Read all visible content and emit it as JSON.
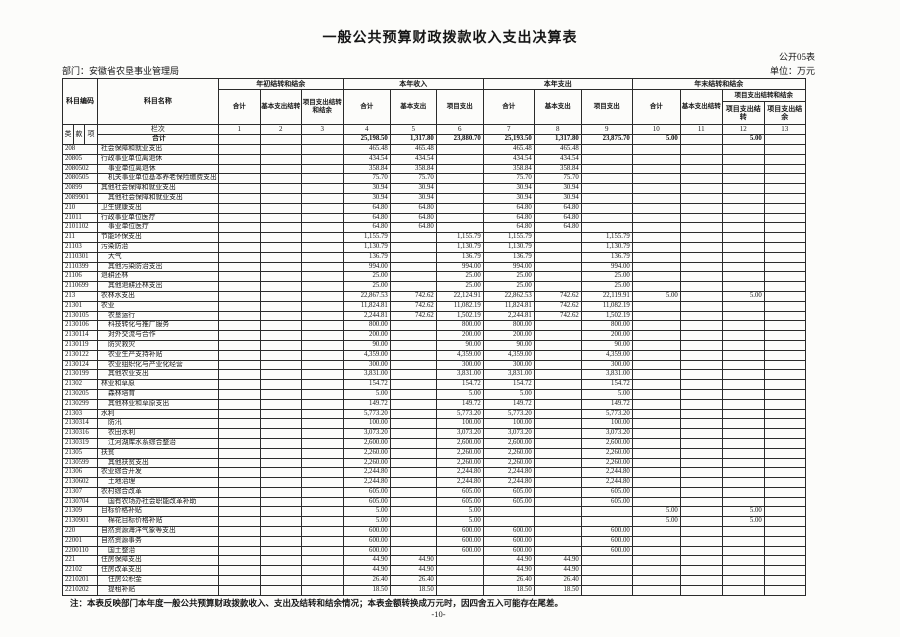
{
  "header": {
    "title": "一般公共预算财政拨款收入支出决算表",
    "table_code": "公开05表",
    "unit_label": "单位：万元",
    "department": "部门：安徽省农垦事业管理局"
  },
  "columns": {
    "subject_code": "科目编码",
    "subject_name": "科目名称",
    "group_begin": "年初结转和结余",
    "group_income": "本年收入",
    "group_expense": "本年支出",
    "group_end": "年末结转和结余",
    "end_sub_group": "项目支出结转和结余",
    "begin_cols": [
      "合计",
      "基本支出结转",
      "项目支出结转和结余"
    ],
    "income_cols": [
      "合计",
      "基本支出",
      "项目支出"
    ],
    "expense_cols": [
      "合计",
      "基本支出",
      "项目支出"
    ],
    "end_cols": [
      "合计",
      "基本支出结转",
      "项目支出结转",
      "项目支出结余"
    ],
    "class_label": "类",
    "section_label": "款",
    "item_label": "项",
    "lanci_label": "栏次",
    "col_numbers": [
      "1",
      "2",
      "3",
      "4",
      "5",
      "6",
      "7",
      "8",
      "9",
      "10",
      "11",
      "12",
      "13"
    ]
  },
  "total_row": {
    "label": "合计",
    "values": [
      "",
      "",
      "",
      "25,198.50",
      "1,317.80",
      "23,880.70",
      "25,193.50",
      "1,317.80",
      "23,875.70",
      "5.00",
      "",
      "5.00",
      ""
    ]
  },
  "rows": [
    [
      "208",
      "社会保障和就业支出",
      [
        "",
        "",
        "",
        "465.48",
        "465.48",
        "",
        "465.48",
        "465.48",
        "",
        "",
        "",
        "",
        ""
      ]
    ],
    [
      "20805",
      "行政事业单位离退休",
      [
        "",
        "",
        "",
        "434.54",
        "434.54",
        "",
        "434.54",
        "434.54",
        "",
        "",
        "",
        "",
        ""
      ]
    ],
    [
      "2080502",
      "事业单位离退休",
      [
        "",
        "",
        "",
        "358.84",
        "358.84",
        "",
        "358.84",
        "358.84",
        "",
        "",
        "",
        "",
        ""
      ]
    ],
    [
      "2080505",
      "机关事业单位基本养老保险缴费支出",
      [
        "",
        "",
        "",
        "75.70",
        "75.70",
        "",
        "75.70",
        "75.70",
        "",
        "",
        "",
        "",
        ""
      ]
    ],
    [
      "20899",
      "其他社会保障和就业支出",
      [
        "",
        "",
        "",
        "30.94",
        "30.94",
        "",
        "30.94",
        "30.94",
        "",
        "",
        "",
        "",
        ""
      ]
    ],
    [
      "2089901",
      "其他社会保障和就业支出",
      [
        "",
        "",
        "",
        "30.94",
        "30.94",
        "",
        "30.94",
        "30.94",
        "",
        "",
        "",
        "",
        ""
      ]
    ],
    [
      "210",
      "卫生健康支出",
      [
        "",
        "",
        "",
        "64.80",
        "64.80",
        "",
        "64.80",
        "64.80",
        "",
        "",
        "",
        "",
        ""
      ]
    ],
    [
      "21011",
      "行政事业单位医疗",
      [
        "",
        "",
        "",
        "64.80",
        "64.80",
        "",
        "64.80",
        "64.80",
        "",
        "",
        "",
        "",
        ""
      ]
    ],
    [
      "2101102",
      "事业单位医疗",
      [
        "",
        "",
        "",
        "64.80",
        "64.80",
        "",
        "64.80",
        "64.80",
        "",
        "",
        "",
        "",
        ""
      ]
    ],
    [
      "211",
      "节能环保支出",
      [
        "",
        "",
        "",
        "1,155.79",
        "",
        "1,155.79",
        "1,155.79",
        "",
        "1,155.79",
        "",
        "",
        "",
        ""
      ]
    ],
    [
      "21103",
      "污染防治",
      [
        "",
        "",
        "",
        "1,130.79",
        "",
        "1,130.79",
        "1,130.79",
        "",
        "1,130.79",
        "",
        "",
        "",
        ""
      ]
    ],
    [
      "2110301",
      "大气",
      [
        "",
        "",
        "",
        "136.79",
        "",
        "136.79",
        "136.79",
        "",
        "136.79",
        "",
        "",
        "",
        ""
      ]
    ],
    [
      "2110399",
      "其他污染防治支出",
      [
        "",
        "",
        "",
        "994.00",
        "",
        "994.00",
        "994.00",
        "",
        "994.00",
        "",
        "",
        "",
        ""
      ]
    ],
    [
      "21106",
      "退耕还林",
      [
        "",
        "",
        "",
        "25.00",
        "",
        "25.00",
        "25.00",
        "",
        "25.00",
        "",
        "",
        "",
        ""
      ]
    ],
    [
      "2110699",
      "其他退耕还林支出",
      [
        "",
        "",
        "",
        "25.00",
        "",
        "25.00",
        "25.00",
        "",
        "25.00",
        "",
        "",
        "",
        ""
      ]
    ],
    [
      "213",
      "农林水支出",
      [
        "",
        "",
        "",
        "22,867.53",
        "742.62",
        "22,124.91",
        "22,862.53",
        "742.62",
        "22,119.91",
        "5.00",
        "",
        "5.00",
        ""
      ]
    ],
    [
      "21301",
      "农业",
      [
        "",
        "",
        "",
        "11,824.81",
        "742.62",
        "11,082.19",
        "11,824.81",
        "742.62",
        "11,082.19",
        "",
        "",
        "",
        ""
      ]
    ],
    [
      "2130105",
      "农垦运行",
      [
        "",
        "",
        "",
        "2,244.81",
        "742.62",
        "1,502.19",
        "2,244.81",
        "742.62",
        "1,502.19",
        "",
        "",
        "",
        ""
      ]
    ],
    [
      "2130106",
      "科技转化与推广服务",
      [
        "",
        "",
        "",
        "800.00",
        "",
        "800.00",
        "800.00",
        "",
        "800.00",
        "",
        "",
        "",
        ""
      ]
    ],
    [
      "2130114",
      "对外交流与合作",
      [
        "",
        "",
        "",
        "200.00",
        "",
        "200.00",
        "200.00",
        "",
        "200.00",
        "",
        "",
        "",
        ""
      ]
    ],
    [
      "2130119",
      "防灾救灾",
      [
        "",
        "",
        "",
        "90.00",
        "",
        "90.00",
        "90.00",
        "",
        "90.00",
        "",
        "",
        "",
        ""
      ]
    ],
    [
      "2130122",
      "农业生产支持补贴",
      [
        "",
        "",
        "",
        "4,359.00",
        "",
        "4,359.00",
        "4,359.00",
        "",
        "4,359.00",
        "",
        "",
        "",
        ""
      ]
    ],
    [
      "2130124",
      "农业组织化与产业化经营",
      [
        "",
        "",
        "",
        "300.00",
        "",
        "300.00",
        "300.00",
        "",
        "300.00",
        "",
        "",
        "",
        ""
      ]
    ],
    [
      "2130199",
      "其他农业支出",
      [
        "",
        "",
        "",
        "3,831.00",
        "",
        "3,831.00",
        "3,831.00",
        "",
        "3,831.00",
        "",
        "",
        "",
        ""
      ]
    ],
    [
      "21302",
      "林业和草原",
      [
        "",
        "",
        "",
        "154.72",
        "",
        "154.72",
        "154.72",
        "",
        "154.72",
        "",
        "",
        "",
        ""
      ]
    ],
    [
      "2130205",
      "森林培育",
      [
        "",
        "",
        "",
        "5.00",
        "",
        "5.00",
        "5.00",
        "",
        "5.00",
        "",
        "",
        "",
        ""
      ]
    ],
    [
      "2130299",
      "其他林业和草原支出",
      [
        "",
        "",
        "",
        "149.72",
        "",
        "149.72",
        "149.72",
        "",
        "149.72",
        "",
        "",
        "",
        ""
      ]
    ],
    [
      "21303",
      "水利",
      [
        "",
        "",
        "",
        "5,773.20",
        "",
        "5,773.20",
        "5,773.20",
        "",
        "5,773.20",
        "",
        "",
        "",
        ""
      ]
    ],
    [
      "2130314",
      "防汛",
      [
        "",
        "",
        "",
        "100.00",
        "",
        "100.00",
        "100.00",
        "",
        "100.00",
        "",
        "",
        "",
        ""
      ]
    ],
    [
      "2130316",
      "农田水利",
      [
        "",
        "",
        "",
        "3,073.20",
        "",
        "3,073.20",
        "3,073.20",
        "",
        "3,073.20",
        "",
        "",
        "",
        ""
      ]
    ],
    [
      "2130319",
      "江河湖库水系综合整治",
      [
        "",
        "",
        "",
        "2,600.00",
        "",
        "2,600.00",
        "2,600.00",
        "",
        "2,600.00",
        "",
        "",
        "",
        ""
      ]
    ],
    [
      "21305",
      "扶贫",
      [
        "",
        "",
        "",
        "2,260.00",
        "",
        "2,260.00",
        "2,260.00",
        "",
        "2,260.00",
        "",
        "",
        "",
        ""
      ]
    ],
    [
      "2130599",
      "其他扶贫支出",
      [
        "",
        "",
        "",
        "2,260.00",
        "",
        "2,260.00",
        "2,260.00",
        "",
        "2,260.00",
        "",
        "",
        "",
        ""
      ]
    ],
    [
      "21306",
      "农业综合开发",
      [
        "",
        "",
        "",
        "2,244.80",
        "",
        "2,244.80",
        "2,244.80",
        "",
        "2,244.80",
        "",
        "",
        "",
        ""
      ]
    ],
    [
      "2130602",
      "土地治理",
      [
        "",
        "",
        "",
        "2,244.80",
        "",
        "2,244.80",
        "2,244.80",
        "",
        "2,244.80",
        "",
        "",
        "",
        ""
      ]
    ],
    [
      "21307",
      "农村综合改革",
      [
        "",
        "",
        "",
        "605.00",
        "",
        "605.00",
        "605.00",
        "",
        "605.00",
        "",
        "",
        "",
        ""
      ]
    ],
    [
      "2130704",
      "国有农场办社会职能改革补助",
      [
        "",
        "",
        "",
        "605.00",
        "",
        "605.00",
        "605.00",
        "",
        "605.00",
        "",
        "",
        "",
        ""
      ]
    ],
    [
      "21309",
      "目标价格补贴",
      [
        "",
        "",
        "",
        "5.00",
        "",
        "5.00",
        "",
        "",
        "",
        "5.00",
        "",
        "5.00",
        ""
      ]
    ],
    [
      "2130901",
      "棉花目标价格补贴",
      [
        "",
        "",
        "",
        "5.00",
        "",
        "5.00",
        "",
        "",
        "",
        "5.00",
        "",
        "5.00",
        ""
      ]
    ],
    [
      "220",
      "自然资源海洋气象等支出",
      [
        "",
        "",
        "",
        "600.00",
        "",
        "600.00",
        "600.00",
        "",
        "600.00",
        "",
        "",
        "",
        ""
      ]
    ],
    [
      "22001",
      "自然资源事务",
      [
        "",
        "",
        "",
        "600.00",
        "",
        "600.00",
        "600.00",
        "",
        "600.00",
        "",
        "",
        "",
        ""
      ]
    ],
    [
      "2200110",
      "国土整治",
      [
        "",
        "",
        "",
        "600.00",
        "",
        "600.00",
        "600.00",
        "",
        "600.00",
        "",
        "",
        "",
        ""
      ]
    ],
    [
      "221",
      "住房保障支出",
      [
        "",
        "",
        "",
        "44.90",
        "44.90",
        "",
        "44.90",
        "44.90",
        "",
        "",
        "",
        "",
        ""
      ]
    ],
    [
      "22102",
      "住房改革支出",
      [
        "",
        "",
        "",
        "44.90",
        "44.90",
        "",
        "44.90",
        "44.90",
        "",
        "",
        "",
        "",
        ""
      ]
    ],
    [
      "2210201",
      "住房公积金",
      [
        "",
        "",
        "",
        "26.40",
        "26.40",
        "",
        "26.40",
        "26.40",
        "",
        "",
        "",
        "",
        ""
      ]
    ],
    [
      "2210202",
      "提租补贴",
      [
        "",
        "",
        "",
        "18.50",
        "18.50",
        "",
        "18.50",
        "18.50",
        "",
        "",
        "",
        "",
        ""
      ]
    ]
  ],
  "footer": {
    "note": "注：本表反映部门本年度一般公共预算财政拨款收入、支出及结转和结余情况；本表金额转换成万元时，因四舍五入可能存在尾差。",
    "page_number": "-10-"
  },
  "colors": {
    "page_background": "#fcfcfa",
    "border": "#2b2b2b",
    "text": "#151515"
  }
}
